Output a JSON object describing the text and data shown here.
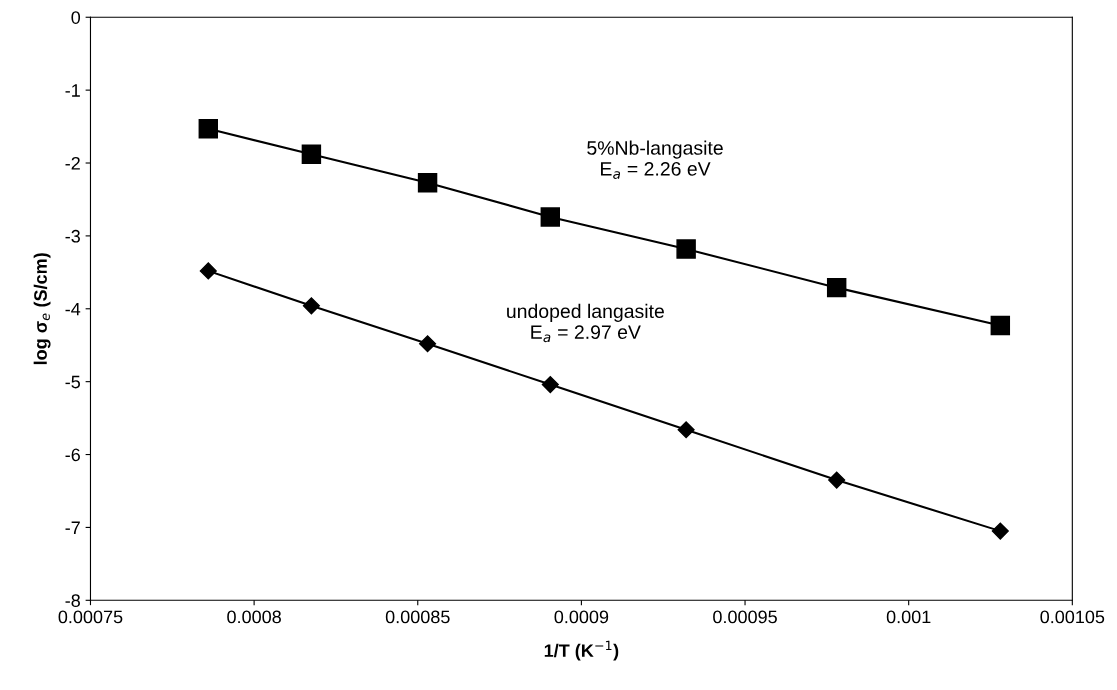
{
  "chart_data": {
    "type": "line",
    "xlabel": "1/T (K$^{−1}$)",
    "ylabel": "log σ$_{e}$ (S/cm)",
    "xlim": [
      0.00075,
      0.00105
    ],
    "xticks": [
      0.00075,
      0.0008,
      0.00085,
      0.0009,
      0.00095,
      0.001,
      0.00105
    ],
    "ylim": [
      -8,
      0
    ],
    "yticks": [
      -8,
      -7,
      -6,
      -5,
      -4,
      -3,
      -2,
      -1,
      0
    ],
    "grid": false,
    "line_style": "solid",
    "x": [
      0.000786,
      0.0008175,
      0.000853,
      0.0008905,
      0.000932,
      0.000978,
      0.001028
    ],
    "series": [
      {
        "color": "#000000",
        "marker": "square",
        "values": [
          -1.53,
          -1.88,
          -2.27,
          -2.74,
          -3.18,
          -3.71,
          -4.23
        ]
      },
      {
        "color": "#000000",
        "marker": "diamond",
        "values": [
          -3.48,
          -3.96,
          -4.48,
          -5.04,
          -5.66,
          -6.35,
          -7.05
        ]
      }
    ],
    "annotations": [
      "5%Nb-langasite\nE$_{a}$ = 2.26 eV",
      "undoped langasite\nE$_{a}$ = 2.97 eV"
    ]
  }
}
